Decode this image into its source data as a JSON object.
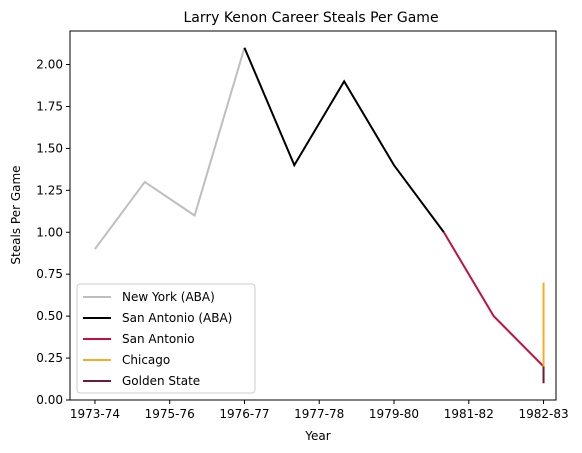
{
  "chart_data": {
    "type": "line",
    "title": "Larry Kenon Career Steals Per Game",
    "xlabel": "Year",
    "ylabel": "Steals Per Game",
    "x_tick_labels": [
      "1973-74",
      "1975-76",
      "1976-77",
      "1977-78",
      "1979-80",
      "1981-82",
      "1982-83"
    ],
    "ylim": [
      0,
      2.2
    ],
    "y_ticks": [
      0.0,
      0.25,
      0.5,
      0.75,
      1.0,
      1.25,
      1.5,
      1.75,
      2.0
    ],
    "y_tick_labels": [
      "0.00",
      "0.25",
      "0.50",
      "0.75",
      "1.00",
      "1.25",
      "1.50",
      "1.75",
      "2.00"
    ],
    "legend_position": "lower-left",
    "grid": false,
    "series": [
      {
        "name": "New York (ABA)",
        "color": "#bebebe",
        "points": [
          [
            0,
            0.9
          ],
          [
            1,
            1.3
          ],
          [
            2,
            1.1
          ],
          [
            3,
            2.1
          ]
        ]
      },
      {
        "name": "San Antonio (ABA)",
        "color": "#000000",
        "points": [
          [
            3,
            2.1
          ],
          [
            4,
            1.4
          ],
          [
            5,
            1.9
          ],
          [
            6,
            1.4
          ],
          [
            7,
            1.0
          ]
        ]
      },
      {
        "name": "San Antonio",
        "color": "#c4103f",
        "points": [
          [
            7,
            1.0
          ],
          [
            8,
            0.5
          ],
          [
            9,
            0.2
          ]
        ]
      },
      {
        "name": "Chicago",
        "color": "#f5ad24",
        "points": [
          [
            9,
            0.1
          ],
          [
            9,
            0.7
          ]
        ]
      },
      {
        "name": "Golden State",
        "color": "#6b1c3a",
        "points": [
          [
            9,
            0.1
          ],
          [
            9,
            0.2
          ]
        ]
      }
    ]
  }
}
